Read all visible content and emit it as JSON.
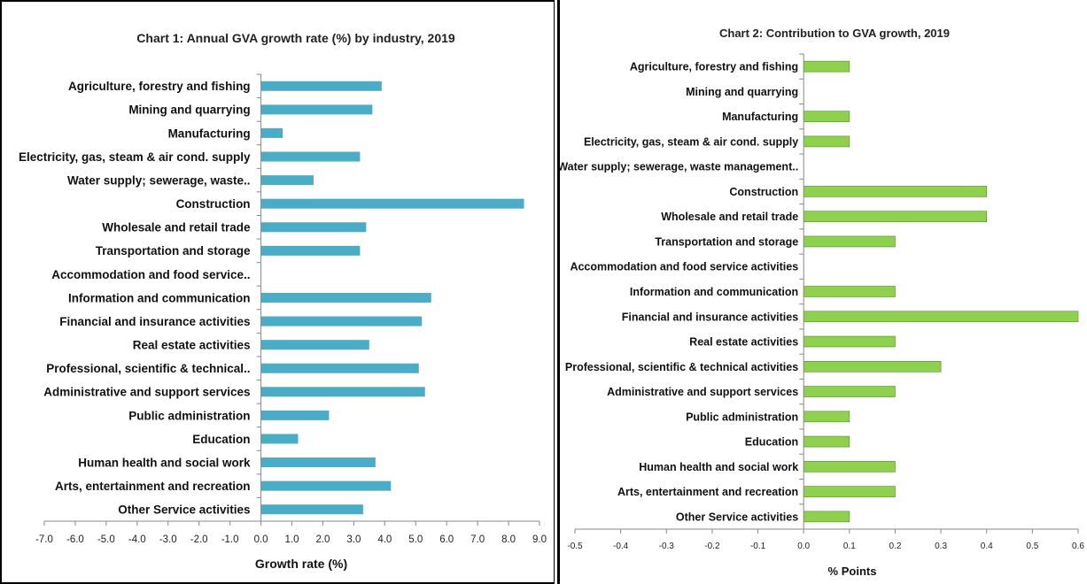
{
  "chart_data": [
    {
      "type": "bar",
      "orientation": "horizontal",
      "title": "Chart 1: Annual GVA growth rate (%) by industry, 2019",
      "xlabel": "Growth rate (%)",
      "ylabel": "",
      "xlim": [
        -7.0,
        9.0
      ],
      "xticks": [
        "-7.0",
        "-6.0",
        "-5.0",
        "-4.0",
        "-3.0",
        "-2.0",
        "-1.0",
        "0.0",
        "1.0",
        "2.0",
        "3.0",
        "4.0",
        "5.0",
        "6.0",
        "7.0",
        "8.0",
        "9.0"
      ],
      "grid": false,
      "bar_color": "#4bacc6",
      "categories": [
        "Agriculture, forestry and fishing",
        "Mining and quarrying",
        "Manufacturing",
        "Electricity, gas, steam & air cond. supply",
        "Water supply; sewerage, waste..",
        "Construction",
        "Wholesale and retail trade",
        "Transportation and storage",
        "Accommodation and food service..",
        "Information and communication",
        "Financial and insurance activities",
        "Real estate activities",
        "Professional, scientific & technical..",
        "Administrative and support services",
        "Public administration",
        "Education",
        "Human health and social work",
        "Arts, entertainment and recreation",
        "Other Service activities"
      ],
      "values": [
        3.9,
        3.6,
        0.7,
        3.2,
        1.7,
        8.5,
        3.4,
        3.2,
        0.0,
        5.5,
        5.2,
        3.5,
        5.1,
        5.3,
        2.2,
        1.2,
        3.7,
        4.2,
        3.3
      ]
    },
    {
      "type": "bar",
      "orientation": "horizontal",
      "title": "Chart 2: Contribution to GVA growth, 2019",
      "xlabel": "% Points",
      "ylabel": "",
      "xlim": [
        -0.5,
        0.6
      ],
      "xticks": [
        "-0.5",
        "-0.4",
        "-0.3",
        "-0.2",
        "-0.1",
        "0.0",
        "0.1",
        "0.2",
        "0.3",
        "0.4",
        "0.5",
        "0.6"
      ],
      "grid": false,
      "bar_color": "#8fd14f",
      "bar_stroke": "#4e8f20",
      "categories": [
        "Agriculture, forestry and fishing",
        "Mining and quarrying",
        "Manufacturing",
        "Electricity, gas, steam & air cond. supply",
        "Water supply; sewerage, waste management..",
        "Construction",
        "Wholesale and retail trade",
        "Transportation and storage",
        "Accommodation and food service activities",
        "Information and communication",
        "Financial and insurance activities",
        "Real estate activities",
        "Professional, scientific & technical  activities",
        "Administrative and support services",
        "Public administration",
        "Education",
        "Human health and social work",
        "Arts, entertainment and recreation",
        "Other Service activities"
      ],
      "values": [
        0.1,
        0.0,
        0.1,
        0.1,
        0.0,
        0.4,
        0.4,
        0.2,
        0.0,
        0.2,
        0.6,
        0.2,
        0.3,
        0.2,
        0.1,
        0.1,
        0.2,
        0.2,
        0.1
      ]
    }
  ]
}
